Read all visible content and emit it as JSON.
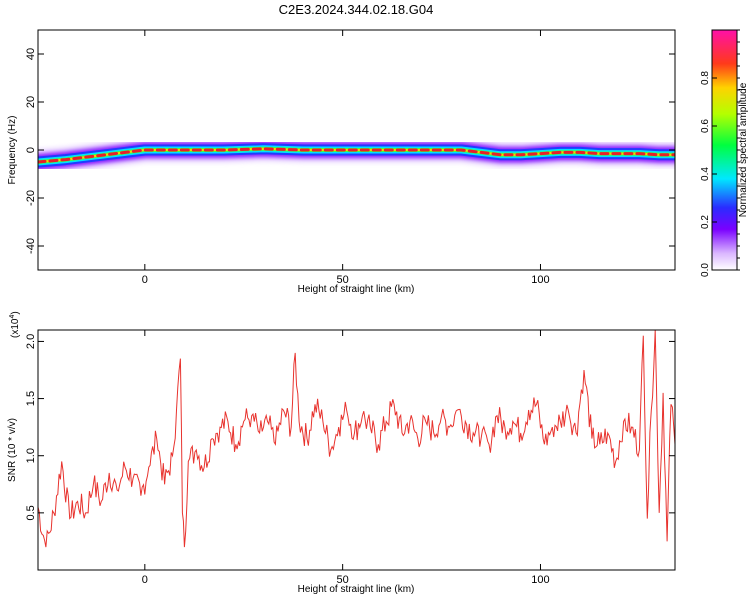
{
  "chart_data": [
    {
      "type": "heatmap",
      "title": "C2E3.2024.344.02.18.G04",
      "xlabel": "Height of straight line (km)",
      "ylabel": "Frequency (Hz)",
      "xlim": [
        -27,
        134
      ],
      "ylim": [
        -50,
        50
      ],
      "xticks": [
        0,
        50,
        100
      ],
      "yticks": [
        -40,
        -20,
        0,
        20,
        40
      ],
      "grid": false,
      "colorbar": {
        "label": "Normalized spectral amplitude",
        "range": [
          0,
          1
        ],
        "ticks": [
          0.0,
          0.2,
          0.4,
          0.6,
          0.8
        ],
        "tick_labels": [
          "0.0",
          "0.2",
          "0.4",
          "0.6",
          "0.8"
        ]
      },
      "ridge": {
        "x": [
          -27,
          -20,
          -15,
          -10,
          -5,
          0,
          5,
          10,
          20,
          30,
          40,
          50,
          60,
          70,
          80,
          85,
          90,
          95,
          100,
          105,
          110,
          115,
          120,
          125,
          130,
          134
        ],
        "frequency_hz": [
          -5,
          -4,
          -3,
          -2,
          -1,
          0,
          0,
          0,
          0,
          0.5,
          0,
          0,
          0,
          0,
          0,
          -1,
          -2,
          -2,
          -1.5,
          -1,
          -1,
          -1.5,
          -1.5,
          -1.5,
          -2,
          -2
        ]
      }
    },
    {
      "type": "line",
      "xlabel": "Height of straight line (km)",
      "ylabel": "SNR (10 * v/v)",
      "y_multiplier_label": "(x10",
      "y_multiplier_exp": "4",
      "y_multiplier_close": ")",
      "xlim": [
        -27,
        134
      ],
      "ylim": [
        0.0,
        2.1
      ],
      "xticks": [
        0,
        50,
        100
      ],
      "yticks": [
        0.5,
        1.0,
        1.5,
        2.0
      ],
      "ytick_labels": [
        "0.5",
        "1.0",
        "1.5",
        "2.0"
      ],
      "grid": false,
      "series": [
        {
          "color": "#e8332e",
          "x": [
            -27,
            -25,
            -23,
            -21,
            -19,
            -17,
            -15,
            -13,
            -11,
            -9,
            -7,
            -5,
            -3,
            -1,
            1,
            3,
            5,
            7,
            8,
            9,
            9.5,
            10,
            11,
            13,
            15,
            17,
            19,
            21,
            23,
            25,
            27,
            29,
            31,
            33,
            35,
            37,
            38,
            39,
            41,
            43,
            45,
            47,
            49,
            51,
            53,
            55,
            57,
            59,
            61,
            63,
            65,
            67,
            69,
            71,
            73,
            75,
            77,
            79,
            81,
            83,
            85,
            87,
            89,
            91,
            93,
            95,
            97,
            99,
            101,
            103,
            105,
            107,
            109,
            111,
            113,
            115,
            117,
            119,
            121,
            123,
            125,
            126,
            127,
            128,
            129,
            130,
            131,
            132,
            133,
            134
          ],
          "y": [
            0.55,
            0.2,
            0.5,
            0.95,
            0.45,
            0.6,
            0.5,
            0.75,
            0.6,
            0.85,
            0.7,
            0.9,
            0.8,
            0.65,
            0.9,
            1.15,
            0.75,
            1.0,
            1.4,
            1.85,
            0.5,
            0.2,
            0.95,
            1.05,
            0.9,
            1.15,
            1.25,
            1.3,
            1.1,
            1.3,
            1.35,
            1.2,
            1.3,
            1.1,
            1.4,
            1.25,
            1.9,
            1.3,
            1.15,
            1.45,
            1.3,
            1.05,
            1.25,
            1.4,
            1.2,
            1.35,
            1.25,
            1.1,
            1.3,
            1.45,
            1.2,
            1.3,
            1.15,
            1.3,
            1.2,
            1.35,
            1.25,
            1.4,
            1.3,
            1.2,
            1.15,
            1.1,
            1.35,
            1.25,
            1.3,
            1.2,
            1.4,
            1.45,
            1.1,
            1.25,
            1.3,
            1.4,
            1.2,
            1.75,
            1.15,
            1.1,
            1.2,
            0.95,
            1.3,
            1.25,
            1.05,
            2.05,
            0.45,
            1.4,
            2.1,
            0.5,
            1.55,
            0.25,
            1.45,
            1.1
          ]
        }
      ]
    }
  ]
}
